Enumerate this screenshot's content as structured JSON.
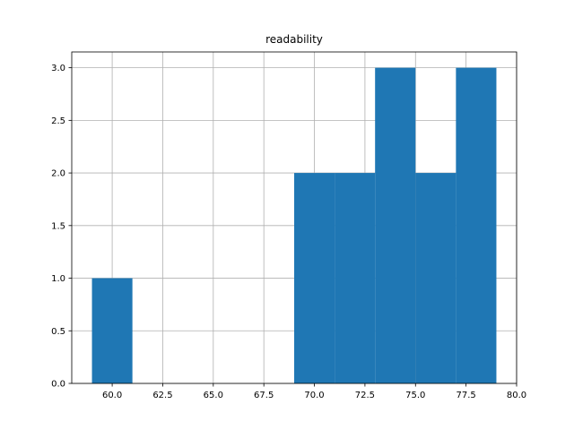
{
  "chart_data": {
    "type": "bar",
    "title": "readability",
    "xlabel": "",
    "ylabel": "",
    "bins": [
      {
        "start": 59,
        "end": 61,
        "count": 1
      },
      {
        "start": 61,
        "end": 63,
        "count": 0
      },
      {
        "start": 63,
        "end": 65,
        "count": 0
      },
      {
        "start": 65,
        "end": 67,
        "count": 0
      },
      {
        "start": 67,
        "end": 69,
        "count": 0
      },
      {
        "start": 69,
        "end": 71,
        "count": 2
      },
      {
        "start": 71,
        "end": 73,
        "count": 2
      },
      {
        "start": 73,
        "end": 75,
        "count": 3
      },
      {
        "start": 75,
        "end": 77,
        "count": 2
      },
      {
        "start": 77,
        "end": 79,
        "count": 3
      }
    ],
    "xlim": [
      58.0,
      80.0
    ],
    "ylim": [
      0,
      3.15
    ],
    "xticks": [
      "60.0",
      "62.5",
      "65.0",
      "67.5",
      "70.0",
      "72.5",
      "75.0",
      "77.5",
      "80.0"
    ],
    "yticks": [
      "0.0",
      "0.5",
      "1.0",
      "1.5",
      "2.0",
      "2.5",
      "3.0"
    ],
    "grid": true,
    "bar_color": "#1f77b4",
    "grid_color": "#b0b0b0"
  }
}
